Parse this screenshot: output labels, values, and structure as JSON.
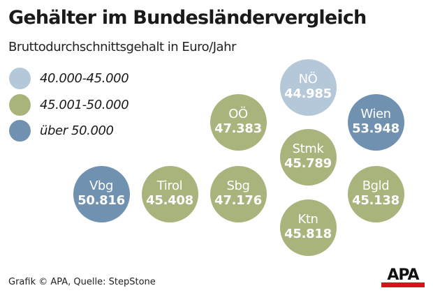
{
  "title": "Gehälter im Bundesländervergleich",
  "subtitle": "Bruttodurchschnittsgehalt in Euro/Jahr",
  "colors": {
    "low": "#b4c8da",
    "mid": "#a8b47c",
    "high": "#7092b0"
  },
  "legend": [
    {
      "label": "40.000-45.000",
      "class": "low"
    },
    {
      "label": "45.001-50.000",
      "class": "mid"
    },
    {
      "label": "über 50.000",
      "class": "high"
    }
  ],
  "chart_data": {
    "type": "bubble",
    "title": "Gehälter im Bundesländervergleich",
    "subtitle": "Bruttodurchschnittsgehalt in Euro/Jahr",
    "legend_placement": "top-left",
    "points": [
      {
        "name": "NÖ",
        "value": "44.985",
        "class": "low"
      },
      {
        "name": "OÖ",
        "value": "47.383",
        "class": "mid"
      },
      {
        "name": "Wien",
        "value": "53.948",
        "class": "high"
      },
      {
        "name": "Stmk",
        "value": "45.789",
        "class": "mid"
      },
      {
        "name": "Vbg",
        "value": "50.816",
        "class": "high"
      },
      {
        "name": "Tirol",
        "value": "45.408",
        "class": "mid"
      },
      {
        "name": "Sbg",
        "value": "47.176",
        "class": "mid"
      },
      {
        "name": "Bgld",
        "value": "45.138",
        "class": "mid"
      },
      {
        "name": "Ktn",
        "value": "45.818",
        "class": "mid"
      }
    ]
  },
  "source": "Grafik © APA, Quelle: StepStone",
  "logo": "APA"
}
